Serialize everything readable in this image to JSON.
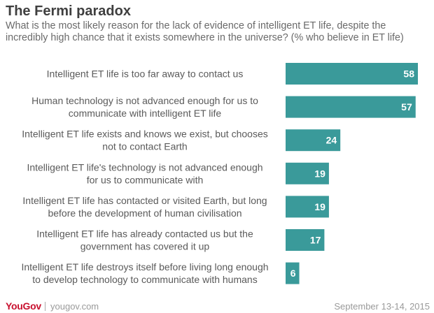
{
  "chart_data": {
    "type": "bar",
    "orientation": "horizontal",
    "title": "The Fermi paradox",
    "subtitle": "What is the most likely reason for the lack of evidence of intelligent ET life, despite the incredibly high chance that it exists somewhere in the universe? (% who believe in ET life)",
    "categories": [
      [
        "Intelligent ET life is too far away to contact us"
      ],
      [
        "Human technology is not advanced enough for us to",
        "communicate with intelligent ET life"
      ],
      [
        "Intelligent ET life exists and knows we exist, but chooses",
        "not to contact Earth"
      ],
      [
        "Intelligent ET life's technology is not advanced enough",
        "for us to communicate with"
      ],
      [
        "Intelligent ET life has contacted or visited Earth, but long",
        "before the development of human civilisation"
      ],
      [
        "Intelligent ET life has already contacted us but the",
        "government has covered it up"
      ],
      [
        "Intelligent ET life destroys itself before living long enough",
        "to develop technology to communicate with humans"
      ]
    ],
    "values": [
      58,
      57,
      24,
      19,
      19,
      17,
      6
    ],
    "xlim": [
      0,
      58
    ],
    "bar_color": "#3a9a9a",
    "label_color": "#ffffff"
  },
  "footer": {
    "brand": "YouGov",
    "site": "yougov.com",
    "date": "September 13-14, 2015"
  },
  "colors": {
    "brand": "#c8102e",
    "title": "#3f3f3f"
  }
}
